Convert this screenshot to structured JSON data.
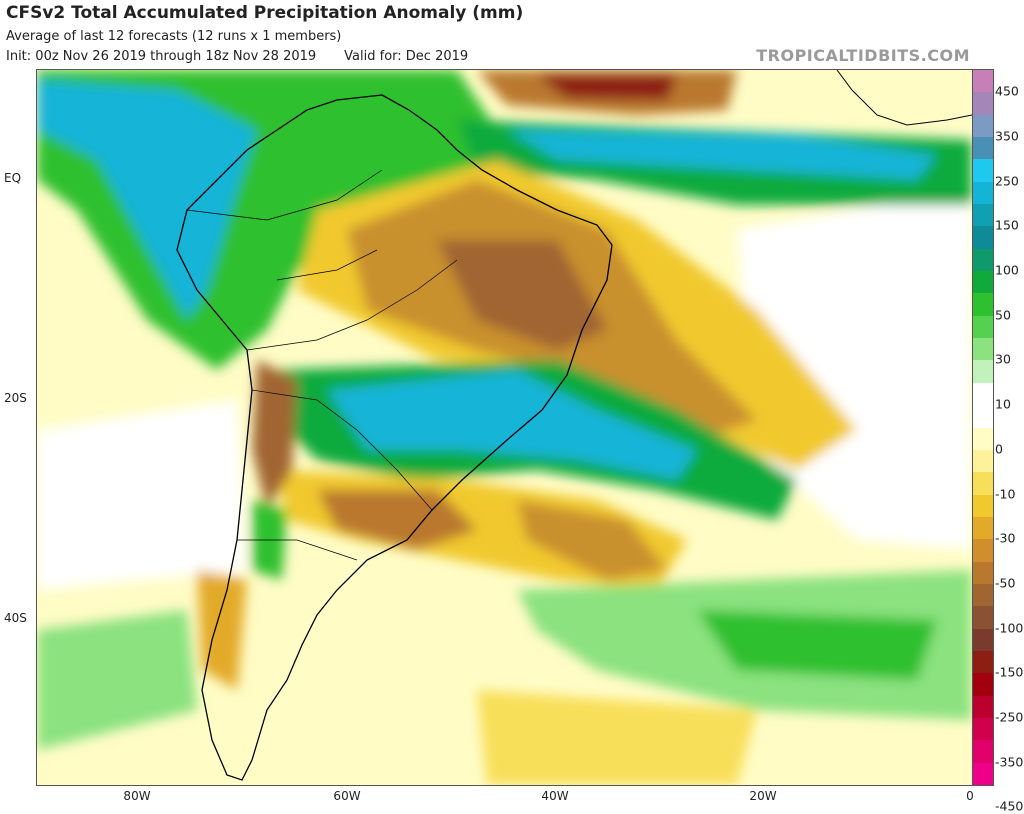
{
  "title": "CFSv2 Total Accumulated Precipitation Anomaly (mm)",
  "subtitle": "Average of last 12 forecasts (12 runs x 1 members)",
  "init": "Init: 00z Nov 26 2019 through 18z Nov 28 2019",
  "valid": "Valid for: Dec 2019",
  "brand": "TROPICALTIDBITS.COM",
  "lat_labels": [
    "EQ",
    "20S",
    "40S"
  ],
  "lon_labels": [
    "80W",
    "60W",
    "40W",
    "20W",
    "0"
  ],
  "colorbar": {
    "labels": [
      "450",
      "350",
      "250",
      "150",
      "100",
      "50",
      "30",
      "10",
      "0",
      "-10",
      "-30",
      "-50",
      "-100",
      "-150",
      "-250",
      "-350",
      "-450"
    ],
    "colors": [
      "#c77fb8",
      "#a586b9",
      "#7b9bc4",
      "#4a8fb5",
      "#1ec8ef",
      "#14b4d7",
      "#119fb4",
      "#0f8a99",
      "#0e9a6a",
      "#10aa3c",
      "#2fc02f",
      "#55d050",
      "#8be27f",
      "#c2f2bb",
      "#ffffff",
      "#ffffff",
      "#fffcc6",
      "#fdf19a",
      "#f8df5a",
      "#f1c92e",
      "#e3aa2a",
      "#d08e2d",
      "#b9782e",
      "#a06531",
      "#8a5233",
      "#7a3b2d",
      "#8c1e14",
      "#a3000f",
      "#bb0030",
      "#d1004c",
      "#e2006a",
      "#ee0088"
    ]
  },
  "colors": {
    "yellow": "#f8df5a",
    "brown": "#b9782e",
    "green": "#2fc02f",
    "teal": "#14b4d7",
    "land_border": "#000000"
  }
}
